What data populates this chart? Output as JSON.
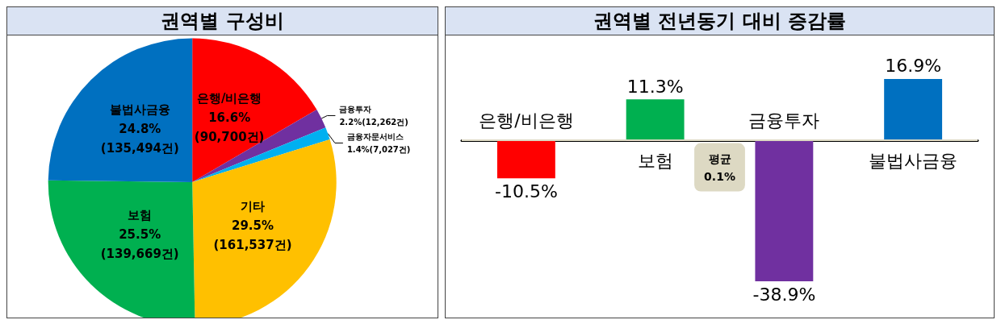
{
  "chart_data": [
    {
      "type": "pie",
      "title": "권역별 구성비",
      "categories": [
        "은행/비은행",
        "금융투자",
        "금융자문서비스",
        "기타",
        "보험",
        "불법사금융"
      ],
      "values": [
        16.6,
        2.2,
        1.4,
        29.5,
        25.5,
        24.8
      ],
      "value_labels": [
        "16.6% (90,700건)",
        "2.2%(12,262건)",
        "1.4%(7,027건)",
        "29.5% (161,537건)",
        "25.5% (139,669건)",
        "24.8% (135,494건)"
      ],
      "colors": [
        "#ff0000",
        "#7030a0",
        "#00b0f0",
        "#ffc000",
        "#00b050",
        "#0070c0"
      ],
      "legend": false
    },
    {
      "type": "bar",
      "title": "권역별 전년동기 대비 증감률",
      "categories": [
        "은행/비은행",
        "보험",
        "금융투자",
        "불법사금융"
      ],
      "values": [
        -10.5,
        11.3,
        -38.9,
        16.9
      ],
      "value_labels": [
        "-10.5%",
        "11.3%",
        "-38.9%",
        "16.9%"
      ],
      "colors": [
        "#ff0000",
        "#00b050",
        "#7030a0",
        "#0070c0"
      ],
      "ref_lines": [
        {
          "axis": "y",
          "value": 0.1,
          "label": "평균 0.1%",
          "color": "#ddd9c3"
        }
      ],
      "legend": false
    }
  ]
}
